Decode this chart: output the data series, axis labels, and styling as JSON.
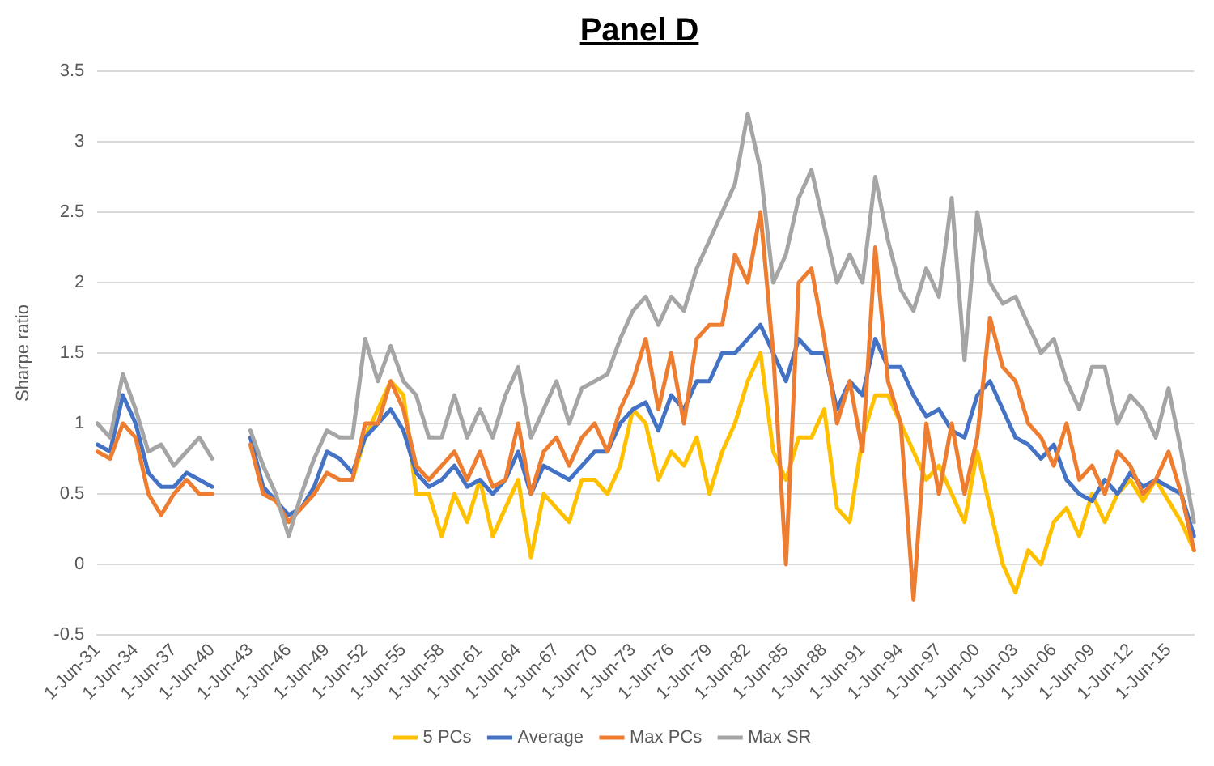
{
  "chart_data": {
    "type": "line",
    "title": "Panel D",
    "ylabel": "Sharpe ratio",
    "categories": [
      "1-Jun-31",
      null,
      null,
      "1-Jun-34",
      null,
      null,
      "1-Jun-37",
      null,
      null,
      "1-Jun-40",
      null,
      null,
      "1-Jun-43",
      null,
      null,
      "1-Jun-46",
      null,
      null,
      "1-Jun-49",
      null,
      null,
      "1-Jun-52",
      null,
      null,
      "1-Jun-55",
      null,
      null,
      "1-Jun-58",
      null,
      null,
      "1-Jun-61",
      null,
      null,
      "1-Jun-64",
      null,
      null,
      "1-Jun-67",
      null,
      null,
      "1-Jun-70",
      null,
      null,
      "1-Jun-73",
      null,
      null,
      "1-Jun-76",
      null,
      null,
      "1-Jun-79",
      null,
      null,
      "1-Jun-82",
      null,
      null,
      "1-Jun-85",
      null,
      null,
      "1-Jun-88",
      null,
      null,
      "1-Jun-91",
      null,
      null,
      "1-Jun-94",
      null,
      null,
      "1-Jun-97",
      null,
      null,
      "1-Jun-00",
      null,
      null,
      "1-Jun-03",
      null,
      null,
      "1-Jun-06",
      null,
      null,
      "1-Jun-09",
      null,
      null,
      "1-Jun-12",
      null,
      null,
      "1-Jun-15",
      null,
      null
    ],
    "series": [
      {
        "name": "5 PCs",
        "color": "#ffc000",
        "values": [
          null,
          null,
          null,
          null,
          null,
          null,
          null,
          null,
          null,
          null,
          null,
          null,
          null,
          null,
          null,
          null,
          null,
          null,
          null,
          0.6,
          0.6,
          0.9,
          1.1,
          1.3,
          1.2,
          0.5,
          0.5,
          0.2,
          0.5,
          0.3,
          0.6,
          0.2,
          0.4,
          0.6,
          0.05,
          0.5,
          0.4,
          0.3,
          0.6,
          0.6,
          0.5,
          0.7,
          1.1,
          1.0,
          0.6,
          0.8,
          0.7,
          0.9,
          0.5,
          0.8,
          1.0,
          1.3,
          1.5,
          0.8,
          0.6,
          0.9,
          0.9,
          1.1,
          0.4,
          0.3,
          0.9,
          1.2,
          1.2,
          1.0,
          0.8,
          0.6,
          0.7,
          0.5,
          0.3,
          0.8,
          0.4,
          0.0,
          -0.2,
          0.1,
          0.0,
          0.3,
          0.4,
          0.2,
          0.5,
          0.3,
          0.5,
          0.6,
          0.45,
          0.6,
          0.45,
          0.3,
          0.1
        ]
      },
      {
        "name": "Average",
        "color": "#4472c4",
        "values": [
          0.85,
          0.8,
          1.2,
          1.0,
          0.65,
          0.55,
          0.55,
          0.65,
          0.6,
          0.55,
          null,
          null,
          0.9,
          0.55,
          0.45,
          0.35,
          0.4,
          0.55,
          0.8,
          0.75,
          0.65,
          0.9,
          1.0,
          1.1,
          0.95,
          0.65,
          0.55,
          0.6,
          0.7,
          0.55,
          0.6,
          0.5,
          0.6,
          0.8,
          0.5,
          0.7,
          0.65,
          0.6,
          0.7,
          0.8,
          0.8,
          1.0,
          1.1,
          1.15,
          0.95,
          1.2,
          1.1,
          1.3,
          1.3,
          1.5,
          1.5,
          1.6,
          1.7,
          1.5,
          1.3,
          1.6,
          1.5,
          1.5,
          1.1,
          1.3,
          1.2,
          1.6,
          1.4,
          1.4,
          1.2,
          1.05,
          1.1,
          0.95,
          0.9,
          1.2,
          1.3,
          1.1,
          0.9,
          0.85,
          0.75,
          0.85,
          0.6,
          0.5,
          0.45,
          0.6,
          0.5,
          0.65,
          0.55,
          0.6,
          0.55,
          0.5,
          0.2
        ]
      },
      {
        "name": "Max PCs",
        "color": "#ed7d31",
        "values": [
          0.8,
          0.75,
          1.0,
          0.9,
          0.5,
          0.35,
          0.5,
          0.6,
          0.5,
          0.5,
          null,
          null,
          0.85,
          0.5,
          0.45,
          0.3,
          0.4,
          0.5,
          0.65,
          0.6,
          0.6,
          1.0,
          1.0,
          1.3,
          1.1,
          0.7,
          0.6,
          0.7,
          0.8,
          0.6,
          0.8,
          0.55,
          0.6,
          1.0,
          0.5,
          0.8,
          0.9,
          0.7,
          0.9,
          1.0,
          0.8,
          1.1,
          1.3,
          1.6,
          1.1,
          1.5,
          1.0,
          1.6,
          1.7,
          1.7,
          2.2,
          2.0,
          2.5,
          1.5,
          0.0,
          2.0,
          2.1,
          1.6,
          1.0,
          1.3,
          0.8,
          2.25,
          1.3,
          1.0,
          -0.25,
          1.0,
          0.5,
          1.0,
          0.5,
          0.9,
          1.75,
          1.4,
          1.3,
          1.0,
          0.9,
          0.7,
          1.0,
          0.6,
          0.7,
          0.5,
          0.8,
          0.7,
          0.5,
          0.6,
          0.8,
          0.5,
          0.1
        ]
      },
      {
        "name": "Max SR",
        "color": "#a5a5a5",
        "values": [
          1.0,
          0.9,
          1.35,
          1.1,
          0.8,
          0.85,
          0.7,
          0.8,
          0.9,
          0.75,
          null,
          null,
          0.95,
          0.7,
          0.5,
          0.2,
          0.5,
          0.75,
          0.95,
          0.9,
          0.9,
          1.6,
          1.3,
          1.55,
          1.3,
          1.2,
          0.9,
          0.9,
          1.2,
          0.9,
          1.1,
          0.9,
          1.2,
          1.4,
          0.9,
          1.1,
          1.3,
          1.0,
          1.25,
          1.3,
          1.35,
          1.6,
          1.8,
          1.9,
          1.7,
          1.9,
          1.8,
          2.1,
          2.3,
          2.5,
          2.7,
          3.2,
          2.8,
          2.0,
          2.2,
          2.6,
          2.8,
          2.4,
          2.0,
          2.2,
          2.0,
          2.75,
          2.3,
          1.95,
          1.8,
          2.1,
          1.9,
          2.6,
          1.45,
          2.5,
          2.0,
          1.85,
          1.9,
          1.7,
          1.5,
          1.6,
          1.3,
          1.1,
          1.4,
          1.4,
          1.0,
          1.2,
          1.1,
          0.9,
          1.25,
          0.8,
          0.3
        ]
      }
    ],
    "ylim": [
      -0.5,
      3.5
    ],
    "yticks": [
      -0.5,
      0,
      0.5,
      1,
      1.5,
      2,
      2.5,
      3,
      3.5
    ],
    "grid": "y",
    "legend": "bottom",
    "marker": "none",
    "line_style": "solid"
  }
}
